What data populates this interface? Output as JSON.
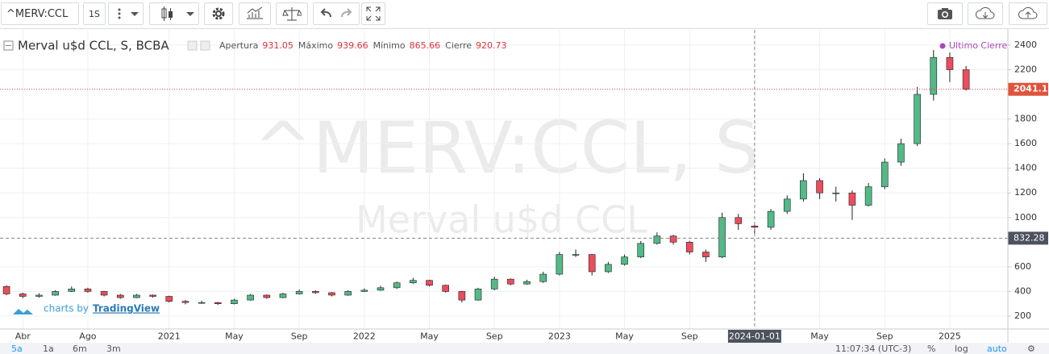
{
  "toolbar": {
    "symbol": "^MERV:CCL",
    "interval": "1S"
  },
  "chart_data": {
    "type": "candlestick",
    "title": "Merval u$d CCL, S, BCBA",
    "legend_labels": [
      "Apertura",
      "Máximo",
      "Mínimo",
      "Cierre"
    ],
    "watermark": {
      "title": "^MERV:CCL, S",
      "subtitle": "Merval u$d CCL"
    },
    "last_close_label": "Ultimo Cierre",
    "categories": [
      null,
      "Abr",
      null,
      null,
      null,
      "Ago",
      null,
      null,
      null,
      null,
      "2021",
      null,
      null,
      null,
      "May",
      null,
      null,
      null,
      "Sep",
      null,
      null,
      null,
      "2022",
      null,
      null,
      null,
      "May",
      null,
      null,
      null,
      "Sep",
      null,
      null,
      null,
      "2023",
      null,
      null,
      null,
      "May",
      null,
      null,
      null,
      "Sep",
      null,
      null,
      null,
      "2024-01-01",
      null,
      null,
      null,
      "May",
      null,
      null,
      null,
      "Sep",
      null,
      null,
      null,
      "2025",
      null
    ],
    "open": [
      440,
      380,
      360,
      370,
      400,
      420,
      400,
      370,
      350,
      370,
      360,
      320,
      310,
      310,
      300,
      330,
      370,
      350,
      380,
      400,
      390,
      370,
      400,
      410,
      430,
      470,
      490,
      450,
      400,
      330,
      420,
      500,
      460,
      480,
      540,
      700,
      700,
      560,
      620,
      680,
      790,
      850,
      800,
      720,
      680,
      1000,
      931.05,
      920.73,
      1050,
      1150,
      1300,
      1200,
      1200,
      1100,
      1250,
      1450,
      1600,
      2000,
      2300,
      2200
    ],
    "high": [
      450,
      390,
      385,
      410,
      440,
      430,
      405,
      380,
      380,
      375,
      365,
      330,
      325,
      315,
      340,
      380,
      375,
      390,
      415,
      410,
      395,
      410,
      425,
      445,
      480,
      510,
      495,
      455,
      405,
      430,
      520,
      505,
      495,
      560,
      720,
      740,
      705,
      640,
      700,
      810,
      880,
      860,
      810,
      740,
      1040,
      1030,
      939.66,
      1070,
      1180,
      1360,
      1320,
      1250,
      1220,
      1280,
      1480,
      1640,
      2060,
      2360,
      2340,
      2230
    ],
    "low": [
      370,
      345,
      350,
      365,
      395,
      390,
      360,
      340,
      345,
      350,
      310,
      295,
      300,
      290,
      295,
      325,
      340,
      345,
      375,
      380,
      360,
      365,
      395,
      405,
      420,
      460,
      440,
      390,
      310,
      325,
      410,
      450,
      455,
      470,
      530,
      680,
      530,
      550,
      610,
      670,
      780,
      780,
      700,
      640,
      670,
      900,
      865.66,
      900,
      1030,
      1130,
      1150,
      1130,
      980,
      1090,
      1230,
      1420,
      1580,
      1950,
      2100,
      2030
    ],
    "close": [
      380,
      360,
      370,
      400,
      420,
      400,
      370,
      350,
      370,
      360,
      320,
      310,
      310,
      300,
      330,
      370,
      350,
      380,
      400,
      390,
      370,
      400,
      410,
      430,
      470,
      490,
      450,
      400,
      330,
      420,
      500,
      460,
      480,
      540,
      700,
      700,
      560,
      620,
      680,
      790,
      850,
      800,
      720,
      680,
      1000,
      950,
      920.73,
      1050,
      1150,
      1300,
      1200,
      1200,
      1100,
      1250,
      1450,
      1600,
      2000,
      2300,
      2200,
      2041.19
    ],
    "up_color": "#53b987",
    "down_color": "#eb4d5c",
    "ylim": [
      95,
      2524
    ],
    "yticks": [
      200,
      400,
      600,
      1000,
      1200,
      1400,
      1600,
      1800,
      2200,
      2400
    ],
    "grid": true,
    "crosshair": {
      "x": "2024-01-01",
      "y": 832.28
    }
  },
  "branding": {
    "prefix": "charts by",
    "name": "TradingView"
  },
  "footer": {
    "ranges": [
      "5a",
      "1a",
      "6m",
      "3m"
    ],
    "time": "11:07:34 (UTC-3)",
    "percent": "%",
    "log": "log",
    "auto": "auto"
  }
}
